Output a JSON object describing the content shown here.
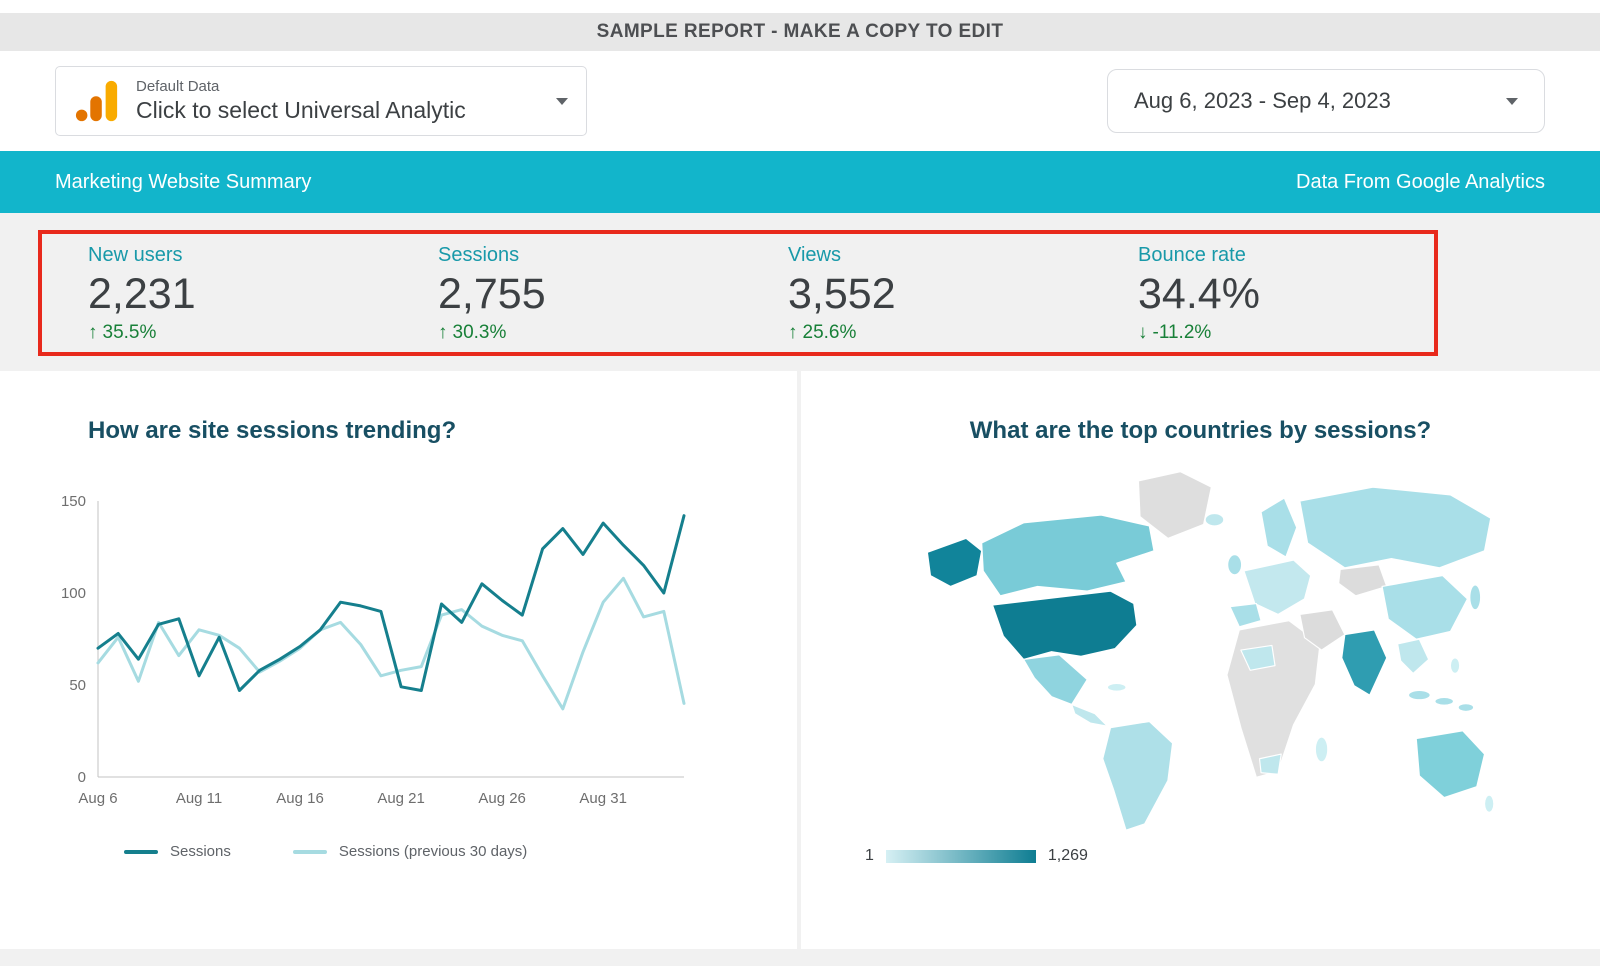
{
  "banner": {
    "text": "SAMPLE REPORT - MAKE A COPY TO EDIT"
  },
  "header": {
    "data_source_label": "Default Data",
    "data_source_value": "Click to select Universal Analytic",
    "date_range": "Aug 6, 2023 - Sep 4, 2023"
  },
  "title_bar": {
    "title": "Marketing Website Summary",
    "source_note": "Data From Google Analytics"
  },
  "scorecards": [
    {
      "label": "New users",
      "value": "2,231",
      "delta": "35.5%",
      "direction": "up"
    },
    {
      "label": "Sessions",
      "value": "2,755",
      "delta": "30.3%",
      "direction": "up"
    },
    {
      "label": "Views",
      "value": "3,552",
      "delta": "25.6%",
      "direction": "up"
    },
    {
      "label": "Bounce rate",
      "value": "34.4%",
      "delta": "-11.2%",
      "direction": "down"
    }
  ],
  "colors": {
    "accent_teal": "#12b5cb",
    "chart_title_teal": "#184f63",
    "score_label_teal": "#1899a9",
    "positive_green": "#188038",
    "highlight_red": "#e8291c",
    "ga_logo_orange": "#f9ab00",
    "ga_logo_dark_orange": "#e37400"
  },
  "chart_data": [
    {
      "type": "line",
      "title": "How are site sessions trending?",
      "x_ticks": [
        "Aug 6",
        "Aug 11",
        "Aug 16",
        "Aug 21",
        "Aug 26",
        "Aug 31"
      ],
      "x_tick_indices": [
        0,
        5,
        10,
        15,
        20,
        25
      ],
      "ylim": [
        0,
        150
      ],
      "y_ticks": [
        0,
        50,
        100,
        150
      ],
      "grid": false,
      "legend_position": "bottom",
      "series": [
        {
          "name": "Sessions",
          "color": "#157f8d",
          "values": [
            70,
            78,
            64,
            83,
            86,
            55,
            76,
            47,
            58,
            64,
            71,
            80,
            95,
            93,
            90,
            49,
            47,
            94,
            84,
            105,
            96,
            88,
            124,
            135,
            121,
            138,
            126,
            115,
            100,
            142
          ]
        },
        {
          "name": "Sessions (previous 30 days)",
          "color": "#a6dbe1",
          "values": [
            62,
            76,
            52,
            84,
            66,
            80,
            77,
            70,
            57,
            63,
            70,
            80,
            84,
            72,
            55,
            58,
            60,
            88,
            91,
            82,
            77,
            74,
            55,
            37,
            68,
            95,
            108,
            87,
            90,
            40
          ]
        }
      ]
    },
    {
      "type": "heatmap",
      "subtype": "geo-choropleth",
      "title": "What are the top countries by sessions?",
      "color_scale": {
        "min_label": "1",
        "max_label": "1,269",
        "min_color": "#d6f0f4",
        "max_color": "#0e7d92"
      },
      "regions": [
        {
          "name": "United States",
          "level": "highest"
        },
        {
          "name": "Alaska (US)",
          "level": "highest"
        },
        {
          "name": "India",
          "level": "high"
        },
        {
          "name": "Canada",
          "level": "medium"
        },
        {
          "name": "Australia",
          "level": "medium"
        },
        {
          "name": "Mexico",
          "level": "medium-low"
        },
        {
          "name": "Russia",
          "level": "low"
        },
        {
          "name": "China",
          "level": "low"
        },
        {
          "name": "South America",
          "level": "low"
        },
        {
          "name": "United Kingdom",
          "level": "low"
        },
        {
          "name": "Europe (various)",
          "level": "low"
        },
        {
          "name": "Southeast Asia",
          "level": "low"
        },
        {
          "name": "Greenland",
          "level": "no-data"
        },
        {
          "name": "Africa (most)",
          "level": "no-data"
        }
      ]
    }
  ]
}
